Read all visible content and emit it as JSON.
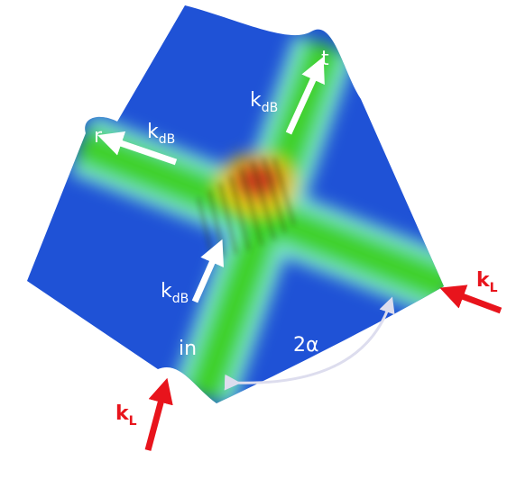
{
  "labels": {
    "transmitted": "t",
    "reflected": "r",
    "incident": "in",
    "angle": "2α",
    "matter_waves": [
      {
        "symbol": "k",
        "sub": "dB"
      },
      {
        "symbol": "k",
        "sub": "dB"
      },
      {
        "symbol": "k",
        "sub": "dB"
      }
    ],
    "lasers": [
      {
        "symbol": "k",
        "sub": "L"
      },
      {
        "symbol": "k",
        "sub": "L"
      }
    ]
  }
}
